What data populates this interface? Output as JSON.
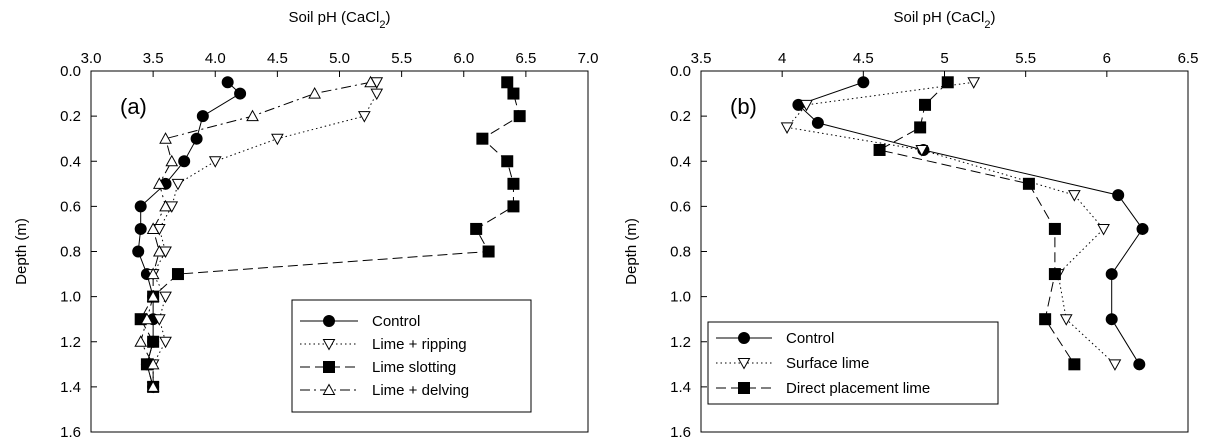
{
  "chart_data": [
    {
      "type": "line",
      "panel_label": "(a)",
      "xlabel": "Soil pH (CaCl",
      "xlabel_sub": "2",
      "xlabel_tail": ")",
      "ylabel": "Depth (m)",
      "xlim": [
        3.0,
        7.0
      ],
      "ylim": [
        0.0,
        1.6
      ],
      "y_inverted": true,
      "x_axis_position": "top",
      "xticks": [
        "3.0",
        "3.5",
        "4.0",
        "4.5",
        "5.0",
        "5.5",
        "6.0",
        "6.5",
        "7.0"
      ],
      "yticks": [
        "0.0",
        "0.2",
        "0.4",
        "0.6",
        "0.8",
        "1.0",
        "1.2",
        "1.4",
        "1.6"
      ],
      "legend_position": "bottom-right",
      "series": [
        {
          "name": "Control",
          "marker": "filled-circle",
          "line": "solid",
          "points": [
            [
              4.1,
              0.05
            ],
            [
              4.2,
              0.1
            ],
            [
              3.9,
              0.2
            ],
            [
              3.85,
              0.3
            ],
            [
              3.75,
              0.4
            ],
            [
              3.6,
              0.5
            ],
            [
              3.4,
              0.6
            ],
            [
              3.4,
              0.7
            ],
            [
              3.38,
              0.8
            ],
            [
              3.45,
              0.9
            ],
            [
              3.5,
              1.0
            ],
            [
              3.5,
              1.1
            ],
            [
              3.5,
              1.2
            ],
            [
              3.45,
              1.3
            ],
            [
              3.5,
              1.4
            ]
          ]
        },
        {
          "name": "Lime + ripping",
          "marker": "open-triangle-down",
          "line": "dotted",
          "points": [
            [
              5.3,
              0.05
            ],
            [
              5.3,
              0.1
            ],
            [
              5.2,
              0.2
            ],
            [
              4.5,
              0.3
            ],
            [
              4.0,
              0.4
            ],
            [
              3.7,
              0.5
            ],
            [
              3.65,
              0.6
            ],
            [
              3.55,
              0.7
            ],
            [
              3.6,
              0.8
            ],
            [
              3.5,
              0.9
            ],
            [
              3.6,
              1.0
            ],
            [
              3.55,
              1.1
            ],
            [
              3.6,
              1.2
            ],
            [
              3.5,
              1.3
            ],
            [
              3.5,
              1.4
            ]
          ]
        },
        {
          "name": "Lime slotting",
          "marker": "filled-square",
          "line": "dashed",
          "points": [
            [
              6.35,
              0.05
            ],
            [
              6.4,
              0.1
            ],
            [
              6.45,
              0.2
            ],
            [
              6.15,
              0.3
            ],
            [
              6.35,
              0.4
            ],
            [
              6.4,
              0.5
            ],
            [
              6.4,
              0.6
            ],
            [
              6.1,
              0.7
            ],
            [
              6.2,
              0.8
            ],
            [
              3.7,
              0.9
            ],
            [
              3.5,
              1.0
            ],
            [
              3.4,
              1.1
            ],
            [
              3.5,
              1.2
            ],
            [
              3.45,
              1.3
            ],
            [
              3.5,
              1.4
            ]
          ]
        },
        {
          "name": "Lime + delving",
          "marker": "open-triangle-up",
          "line": "dash-dot",
          "points": [
            [
              5.25,
              0.05
            ],
            [
              4.8,
              0.1
            ],
            [
              4.3,
              0.2
            ],
            [
              3.6,
              0.3
            ],
            [
              3.65,
              0.4
            ],
            [
              3.55,
              0.5
            ],
            [
              3.6,
              0.6
            ],
            [
              3.5,
              0.7
            ],
            [
              3.55,
              0.8
            ],
            [
              3.5,
              0.9
            ],
            [
              3.5,
              1.0
            ],
            [
              3.45,
              1.1
            ],
            [
              3.4,
              1.2
            ],
            [
              3.5,
              1.3
            ],
            [
              3.5,
              1.4
            ]
          ]
        }
      ]
    },
    {
      "type": "line",
      "panel_label": "(b)",
      "xlabel": "Soil pH (CaCl",
      "xlabel_sub": "2",
      "xlabel_tail": ")",
      "ylabel": "Depth (m)",
      "xlim": [
        3.5,
        6.5
      ],
      "ylim": [
        0.0,
        1.6
      ],
      "y_inverted": true,
      "x_axis_position": "top",
      "xticks": [
        "3.5",
        "4",
        "4.5",
        "5",
        "5.5",
        "6",
        "6.5"
      ],
      "yticks": [
        "0.0",
        "0.2",
        "0.4",
        "0.6",
        "0.8",
        "1.0",
        "1.2",
        "1.4",
        "1.6"
      ],
      "legend_position": "bottom-left",
      "series": [
        {
          "name": "Control",
          "marker": "filled-circle",
          "line": "solid",
          "points": [
            [
              4.5,
              0.05
            ],
            [
              4.1,
              0.15
            ],
            [
              4.22,
              0.23
            ],
            [
              4.87,
              0.35
            ],
            [
              6.07,
              0.55
            ],
            [
              6.22,
              0.7
            ],
            [
              6.03,
              0.9
            ],
            [
              6.03,
              1.1
            ],
            [
              6.2,
              1.3
            ]
          ]
        },
        {
          "name": "Surface lime",
          "marker": "open-triangle-down",
          "line": "dotted",
          "points": [
            [
              5.18,
              0.05
            ],
            [
              4.15,
              0.15
            ],
            [
              4.03,
              0.25
            ],
            [
              4.86,
              0.35
            ],
            [
              5.8,
              0.55
            ],
            [
              5.98,
              0.7
            ],
            [
              5.7,
              0.9
            ],
            [
              5.75,
              1.1
            ],
            [
              6.05,
              1.3
            ]
          ]
        },
        {
          "name": "Direct placement lime",
          "marker": "filled-square",
          "line": "dashed",
          "points": [
            [
              5.02,
              0.05
            ],
            [
              4.88,
              0.15
            ],
            [
              4.85,
              0.25
            ],
            [
              4.6,
              0.35
            ],
            [
              5.52,
              0.5
            ],
            [
              5.68,
              0.7
            ],
            [
              5.68,
              0.9
            ],
            [
              5.62,
              1.1
            ],
            [
              5.8,
              1.3
            ]
          ]
        }
      ]
    }
  ]
}
